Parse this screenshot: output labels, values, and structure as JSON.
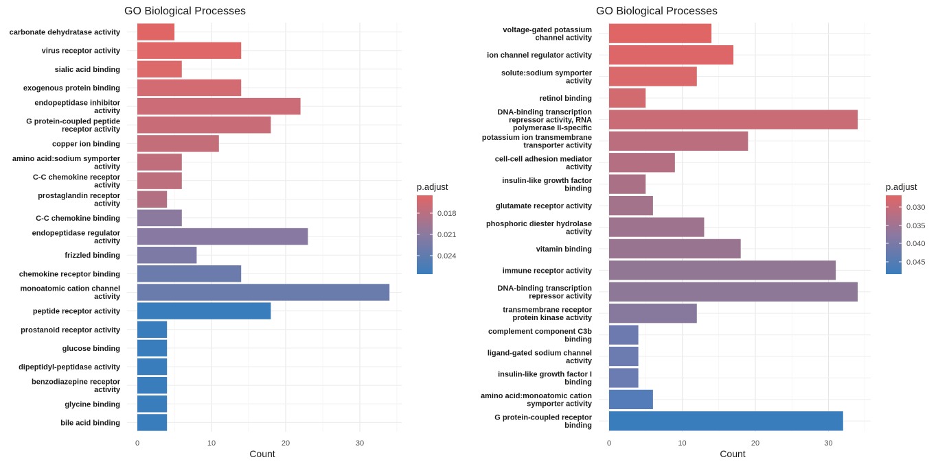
{
  "chart_data": [
    {
      "type": "bar",
      "orientation": "horizontal",
      "title": "GO Biological Processes",
      "xlabel": "Count",
      "ylabel": "",
      "xlim": [
        0,
        35
      ],
      "x_ticks": [
        "0",
        "10",
        "20",
        "30"
      ],
      "grid": true,
      "categories": [
        "carbonate dehydratase activity",
        "virus receptor activity",
        "sialic acid binding",
        "exogenous protein binding",
        "endopeptidase inhibitor\nactivity",
        "G protein-coupled peptide\nreceptor activity",
        "copper ion binding",
        "amino acid:sodium symporter\nactivity",
        "C-C chemokine receptor\nactivity",
        "prostaglandin receptor\nactivity",
        "C-C chemokine binding",
        "endopeptidase regulator\nactivity",
        "frizzled binding",
        "chemokine receptor binding",
        "monoatomic cation channel\nactivity",
        "peptide receptor activity",
        "prostanoid receptor activity",
        "glucose binding",
        "dipeptidyl-peptidase activity",
        "benzodiazepine receptor\nactivity",
        "glycine binding",
        "bile acid binding"
      ],
      "values": [
        5,
        14,
        6,
        14,
        22,
        18,
        11,
        6,
        6,
        4,
        6,
        23,
        8,
        14,
        34,
        18,
        4,
        4,
        4,
        4,
        4,
        4
      ],
      "bar_colors": [
        "#e06666",
        "#e06767",
        "#dd6a6b",
        "#d26c72",
        "#cb6c76",
        "#c86d78",
        "#c46e7a",
        "#c16e7c",
        "#bd6f7e",
        "#b27082",
        "#8b7a9e",
        "#8779a1",
        "#7d7aa5",
        "#6b7bab",
        "#6a7cac",
        "#3a7dbc",
        "#3a7dbc",
        "#3a7dbc",
        "#3a7dbc",
        "#3a7dbc",
        "#3a7dbc",
        "#3a7dbc"
      ],
      "legend": {
        "title": "p.adjust",
        "placement": "right",
        "ticks": [
          "0.018",
          "0.021",
          "0.024"
        ],
        "colors": [
          "#e06666",
          "#8a7aa0",
          "#3a7dbc"
        ]
      }
    },
    {
      "type": "bar",
      "orientation": "horizontal",
      "title": "GO Biological Processes",
      "xlabel": "Count",
      "ylabel": "",
      "xlim": [
        0,
        35
      ],
      "x_ticks": [
        "0",
        "10",
        "20",
        "30"
      ],
      "grid": true,
      "categories": [
        "voltage-gated potassium\nchannel activity",
        "ion channel regulator activity",
        "solute:sodium symporter\nactivity",
        "retinol binding",
        "DNA-binding transcription\nrepressor activity, RNA\npolymerase II-specific",
        "potassium ion transmembrane\ntransporter activity",
        "cell-cell adhesion mediator\nactivity",
        "insulin-like growth factor\nbinding",
        "glutamate receptor activity",
        "phosphoric diester hydrolase\nactivity",
        "vitamin binding",
        "immune receptor activity",
        "DNA-binding transcription\nrepressor activity",
        "transmembrane receptor\nprotein kinase activity",
        "complement component C3b\nbinding",
        "ligand-gated sodium channel\nactivity",
        "insulin-like growth factor I\nbinding",
        "amino acid:monoatomic cation\nsymporter activity",
        "G protein-coupled receptor\nbinding"
      ],
      "values": [
        14,
        17,
        12,
        5,
        34,
        19,
        9,
        5,
        6,
        13,
        18,
        31,
        34,
        12,
        4,
        4,
        4,
        6,
        32
      ],
      "bar_colors": [
        "#e06666",
        "#dd6768",
        "#d9696b",
        "#d26b70",
        "#c96c76",
        "#bb6e7e",
        "#b46f82",
        "#aa7186",
        "#a3728b",
        "#9e738e",
        "#997491",
        "#927795",
        "#8e7898",
        "#86799d",
        "#6d7ab0",
        "#6c7bb0",
        "#6a7cb1",
        "#537cb8",
        "#3a7dbc"
      ],
      "legend": {
        "title": "p.adjust",
        "placement": "right",
        "ticks": [
          "0.030",
          "0.035",
          "0.040",
          "0.045"
        ],
        "colors": [
          "#e06666",
          "#8c78a0",
          "#3a7dbc"
        ]
      }
    }
  ]
}
